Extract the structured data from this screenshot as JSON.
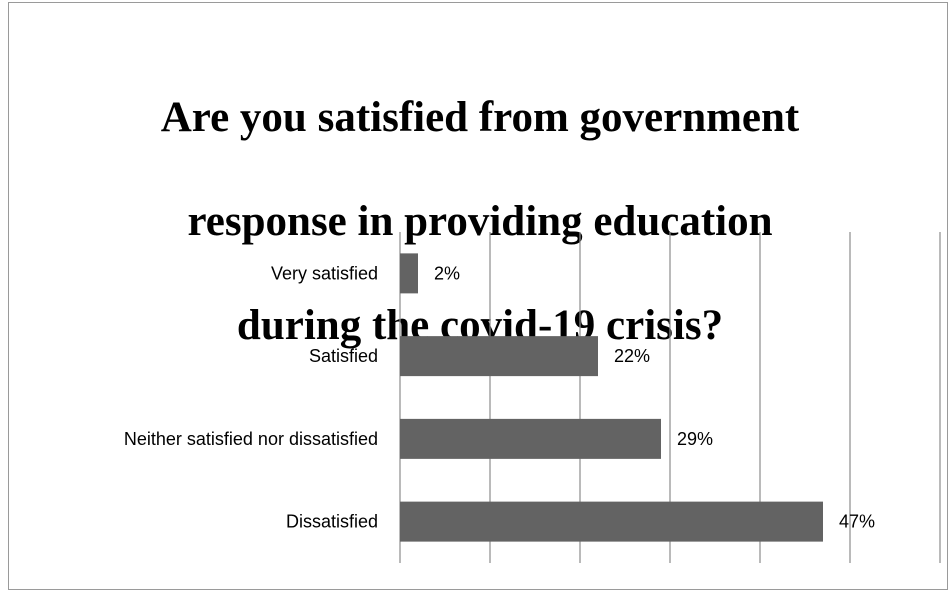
{
  "chart_data": {
    "type": "bar",
    "orientation": "horizontal",
    "title": "Are you satisfied from government response in providing education during the  covid-19 crisis?",
    "title_lines": [
      "Are you satisfied from government",
      "response in providing education",
      "during the  covid-19 crisis?"
    ],
    "categories": [
      "Very satisfied",
      "Satisfied",
      "Neither satisfied nor dissatisfied",
      "Dissatisfied"
    ],
    "values": [
      2,
      22,
      29,
      47
    ],
    "value_labels": [
      "2%",
      "22%",
      "29%",
      "47%"
    ],
    "unit": "%",
    "xlim": [
      0,
      60
    ],
    "x_gridline_step": 10,
    "grid": true,
    "legend": "none",
    "bar_color": "#636363",
    "gridline_color": "#8c8c8c"
  }
}
